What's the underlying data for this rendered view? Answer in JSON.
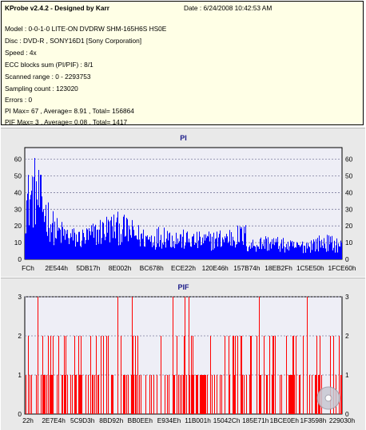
{
  "info": {
    "title": "KProbe v2.4.2 - Designed by Karr",
    "date": "Date : 6/24/2008 10:42:53 AM",
    "lines": [
      "Model : 0-0-1-0 LITE-ON DVDRW SHM-165H6S HS0E",
      "Disc : DVD-R , SONY16D1 [Sony Corporation]",
      "Speed : 4x",
      "ECC blocks sum (PI/PIF) : 8/1",
      "Scanned range : 0 - 2293753",
      "Sampling count : 123020",
      "Errors : 0",
      "PI Max= 67 , Average= 8.91 , Total= 156864",
      "PIF Max= 3 , Average= 0.08 , Total= 1417"
    ]
  },
  "colors": {
    "pi": "#0000ff",
    "pif": "#ff0000",
    "plot_bg": "#eeeef6",
    "panel_bg": "#e9e9e9",
    "info_bg": "#ffffe6",
    "title": "#1a1a88"
  },
  "icons": {
    "disc": "cd-disc-icon"
  },
  "chart_data": [
    {
      "type": "bar",
      "title": "PI",
      "y_ticks": [
        "0",
        "10",
        "20",
        "30",
        "40",
        "50",
        "60"
      ],
      "ylim": [
        0,
        67
      ],
      "x_ticks": [
        "FCh",
        "2E544h",
        "5DB17h",
        "8E002h",
        "BC678h",
        "ECE22h",
        "120E46h",
        "157B74h",
        "18EB2Fh",
        "1C5E50h",
        "1FCE60h"
      ],
      "grid": true,
      "max": 67,
      "average": 8.91
    },
    {
      "type": "bar",
      "title": "PIF",
      "y_ticks": [
        "0",
        "1",
        "2",
        "3"
      ],
      "ylim": [
        0,
        3
      ],
      "x_ticks": [
        "22h",
        "2E7E4h",
        "5C9D3h",
        "8BD92h",
        "BB0EEh",
        "E934Eh",
        "11B001h",
        "15042Ch",
        "185E71h",
        "1BCE0Eh",
        "1F3598h",
        "229030h"
      ],
      "grid": true,
      "max": 3,
      "average": 0.08
    }
  ]
}
